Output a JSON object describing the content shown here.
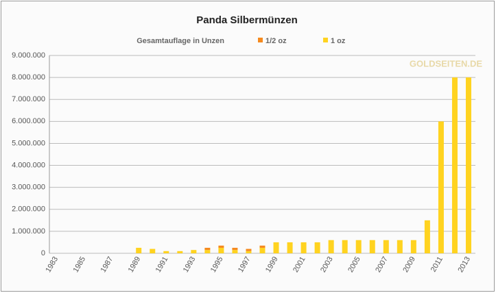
{
  "chart_data": {
    "type": "stacked-bar",
    "title": "Panda Silbermünzen",
    "legend_title": "Gesamtauflage in Unzen",
    "watermark": "GOLDSEITEN.DE",
    "categories": [
      "1983",
      null,
      "1985",
      null,
      "1987",
      null,
      "1989",
      null,
      "1991",
      null,
      "1993",
      null,
      "1995",
      null,
      "1997",
      null,
      "1999",
      null,
      "2001",
      null,
      "2003",
      null,
      "2005",
      null,
      "2007",
      null,
      "2009",
      null,
      "2011",
      null,
      "2013"
    ],
    "series": [
      {
        "name": "1/2 oz",
        "color": "#f58a1f",
        "values": [
          0,
          0,
          0,
          0,
          0,
          0,
          0,
          0,
          0,
          0,
          0,
          100000,
          100000,
          100000,
          100000,
          100000,
          0,
          0,
          0,
          0,
          0,
          0,
          0,
          0,
          0,
          0,
          0,
          0,
          0,
          0,
          0
        ]
      },
      {
        "name": "1 oz",
        "color": "#ffd320",
        "values": [
          0,
          0,
          0,
          0,
          0,
          0,
          250000,
          200000,
          100000,
          100000,
          150000,
          150000,
          250000,
          150000,
          100000,
          250000,
          500000,
          500000,
          500000,
          500000,
          600000,
          600000,
          600000,
          600000,
          600000,
          600000,
          600000,
          1500000,
          6000000,
          8000000,
          8000000
        ]
      }
    ],
    "ylim": [
      0,
      9000000
    ],
    "yticks": [
      0,
      {
        "value": 1000000,
        "label": "1.000.000"
      },
      {
        "value": 2000000,
        "label": "2.000.000"
      },
      {
        "value": 3000000,
        "label": "3.000.000"
      },
      {
        "value": 4000000,
        "label": "4.000.000"
      },
      {
        "value": 5000000,
        "label": "5.000.000"
      },
      {
        "value": 6000000,
        "label": "6.000.000"
      },
      {
        "value": 7000000,
        "label": "7.000.000"
      },
      {
        "value": 8000000,
        "label": "8.000.000"
      },
      {
        "value": 9000000,
        "label": "9.000.000"
      }
    ],
    "grid": true
  }
}
